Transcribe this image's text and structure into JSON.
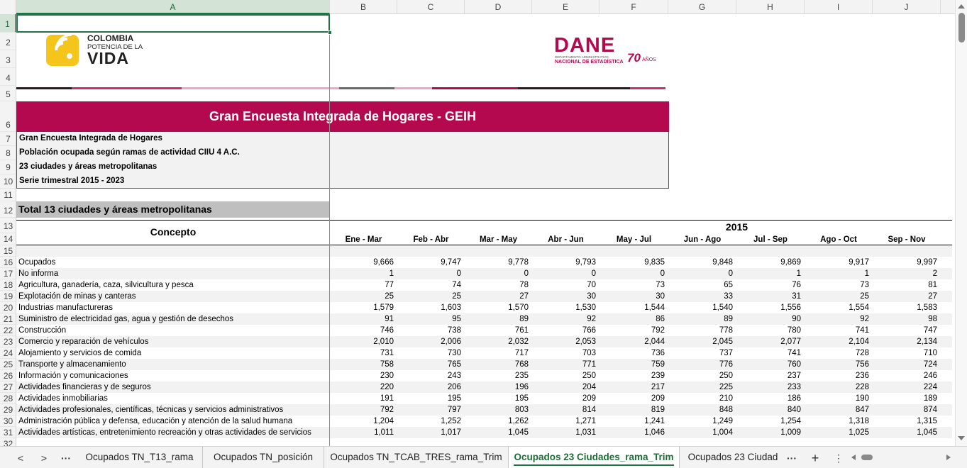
{
  "columns": [
    "A",
    "B",
    "C",
    "D",
    "E",
    "F",
    "G",
    "H",
    "I",
    "J"
  ],
  "rows": [
    "1",
    "2",
    "3",
    "4",
    "5",
    "6",
    "7",
    "8",
    "9",
    "10",
    "11",
    "12",
    "13",
    "14",
    "15",
    "16",
    "17",
    "18",
    "19",
    "20",
    "21",
    "22",
    "23",
    "24",
    "25",
    "26",
    "27",
    "28",
    "29",
    "30",
    "31",
    "32"
  ],
  "logos": {
    "colombia_line1": "COLOMBIA",
    "colombia_line2": "POTENCIA DE LA",
    "colombia_line3": "VIDA",
    "dane_name": "DANE",
    "dane_sub1": "DEPARTAMENTO ADMINISTRATIVO",
    "dane_sub2": "NACIONAL DE ESTADÍSTICA",
    "dane_years": "70",
    "dane_years_suffix": "AÑOS"
  },
  "colors": {
    "title_band": "#b5094f",
    "accent_green": "#217346",
    "dane_red": "#b5094f",
    "colombia_yellow": "#f6c51c"
  },
  "title": "Gran Encuesta Integrada de Hogares - GEIH",
  "info": [
    "Gran Encuesta Integrada de Hogares",
    "Población ocupada según ramas de actividad CIIU 4 A.C.",
    "23 ciudades y áreas metropolitanas",
    "Serie trimestral 2015 - 2023"
  ],
  "section": "Total 13 ciudades y áreas metropolitanas",
  "concept_header": "Concepto",
  "year": "2015",
  "periods": [
    "Ene - Mar",
    "Feb - Abr",
    "Mar - May",
    "Abr - Jun",
    "May - Jul",
    "Jun - Ago",
    "Jul - Sep",
    "Ago - Oct",
    "Sep - Nov"
  ],
  "data_rows": [
    {
      "label": "Ocupados",
      "values": [
        "9,666",
        "9,747",
        "9,778",
        "9,793",
        "9,835",
        "9,848",
        "9,869",
        "9,917",
        "9,997"
      ]
    },
    {
      "label": "No informa",
      "values": [
        "1",
        "0",
        "0",
        "0",
        "0",
        "0",
        "1",
        "1",
        "2"
      ]
    },
    {
      "label": "Agricultura, ganadería, caza, silvicultura y pesca",
      "values": [
        "77",
        "74",
        "78",
        "70",
        "73",
        "65",
        "76",
        "73",
        "81"
      ]
    },
    {
      "label": "Explotación de minas y canteras",
      "values": [
        "25",
        "25",
        "27",
        "30",
        "30",
        "33",
        "31",
        "25",
        "27"
      ]
    },
    {
      "label": "Industrias manufactureras",
      "values": [
        "1,579",
        "1,603",
        "1,570",
        "1,530",
        "1,544",
        "1,540",
        "1,556",
        "1,554",
        "1,583"
      ]
    },
    {
      "label": "Suministro de electricidad gas, agua y gestión de desechos",
      "values": [
        "91",
        "95",
        "89",
        "92",
        "86",
        "89",
        "90",
        "92",
        "98"
      ]
    },
    {
      "label": "Construcción",
      "values": [
        "746",
        "738",
        "761",
        "766",
        "792",
        "778",
        "780",
        "741",
        "747"
      ]
    },
    {
      "label": "Comercio y reparación de vehículos",
      "values": [
        "2,010",
        "2,006",
        "2,032",
        "2,053",
        "2,044",
        "2,045",
        "2,077",
        "2,104",
        "2,134"
      ]
    },
    {
      "label": "Alojamiento y servicios de comida",
      "values": [
        "731",
        "730",
        "717",
        "703",
        "736",
        "737",
        "741",
        "728",
        "710"
      ]
    },
    {
      "label": "Transporte y almacenamiento",
      "values": [
        "758",
        "765",
        "768",
        "771",
        "759",
        "776",
        "760",
        "756",
        "724"
      ]
    },
    {
      "label": "Información y comunicaciones",
      "values": [
        "230",
        "243",
        "235",
        "250",
        "239",
        "250",
        "237",
        "236",
        "246"
      ]
    },
    {
      "label": "Actividades financieras y de seguros",
      "values": [
        "220",
        "206",
        "196",
        "204",
        "217",
        "225",
        "233",
        "228",
        "224"
      ]
    },
    {
      "label": "Actividades inmobiliarias",
      "values": [
        "191",
        "195",
        "195",
        "209",
        "209",
        "210",
        "186",
        "190",
        "189"
      ]
    },
    {
      "label": "Actividades profesionales, científicas, técnicas y servicios administrativos",
      "values": [
        "792",
        "797",
        "803",
        "814",
        "819",
        "848",
        "840",
        "847",
        "874"
      ]
    },
    {
      "label": "Administración pública y defensa, educación y atención de la salud humana",
      "values": [
        "1,204",
        "1,252",
        "1,262",
        "1,271",
        "1,241",
        "1,249",
        "1,254",
        "1,318",
        "1,315"
      ]
    },
    {
      "label": "Actividades artísticas, entretenimiento recreación y otras actividades de servicios",
      "values": [
        "1,011",
        "1,017",
        "1,045",
        "1,031",
        "1,046",
        "1,004",
        "1,009",
        "1,025",
        "1,045"
      ]
    }
  ],
  "tabs": {
    "prev": "<",
    "next": ">",
    "more": "···",
    "items": [
      "Ocupados TN_T13_rama",
      "Ocupados TN_posición",
      "Ocupados TN_TCAB_TRES_rama_Trim",
      "Ocupados 23 Ciudades_rama_Trim",
      "Ocupados 23 Ciudad"
    ],
    "active_index": 3,
    "overflow": "···",
    "add": "+",
    "menu": "⋮"
  }
}
